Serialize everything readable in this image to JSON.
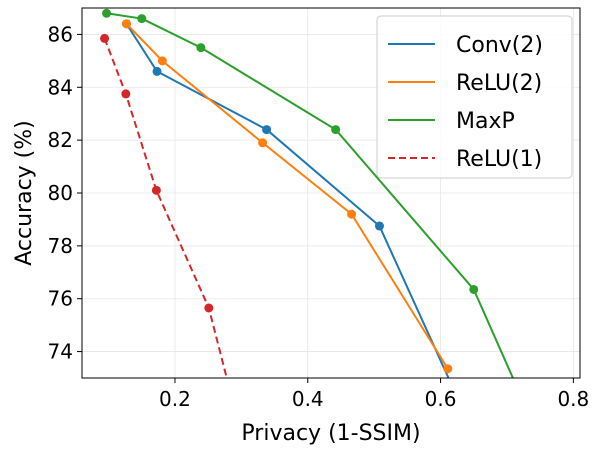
{
  "chart_data": {
    "type": "line",
    "xlabel": "Privacy (1-SSIM)",
    "ylabel": "Accuracy (%)",
    "xlim": [
      0.06,
      0.81
    ],
    "ylim": [
      73.0,
      87.0
    ],
    "xticks": [
      {
        "value": 0.2,
        "label": "0.2"
      },
      {
        "value": 0.4,
        "label": "0.4"
      },
      {
        "value": 0.6,
        "label": "0.6"
      },
      {
        "value": 0.8,
        "label": "0.8"
      }
    ],
    "yticks": [
      {
        "value": 74,
        "label": "74"
      },
      {
        "value": 76,
        "label": "76"
      },
      {
        "value": 78,
        "label": "78"
      },
      {
        "value": 80,
        "label": "80"
      },
      {
        "value": 82,
        "label": "82"
      },
      {
        "value": 84,
        "label": "84"
      },
      {
        "value": 86,
        "label": "86"
      }
    ],
    "grid": true,
    "legend_position": "top-right",
    "series": [
      {
        "name": "Conv(2)",
        "color": "#1f77b4",
        "dash": "solid",
        "points": [
          {
            "x": 0.127,
            "y": 86.4,
            "marker": true
          },
          {
            "x": 0.173,
            "y": 84.6,
            "marker": true
          },
          {
            "x": 0.338,
            "y": 82.4,
            "marker": true
          },
          {
            "x": 0.508,
            "y": 78.75,
            "marker": true
          },
          {
            "x": 0.612,
            "y": 73.0,
            "marker": false
          }
        ]
      },
      {
        "name": "ReLU(2)",
        "color": "#ff7f0e",
        "dash": "solid",
        "points": [
          {
            "x": 0.127,
            "y": 86.4,
            "marker": true
          },
          {
            "x": 0.181,
            "y": 85.0,
            "marker": true
          },
          {
            "x": 0.332,
            "y": 81.9,
            "marker": true
          },
          {
            "x": 0.466,
            "y": 79.2,
            "marker": true
          },
          {
            "x": 0.611,
            "y": 73.35,
            "marker": true
          }
        ]
      },
      {
        "name": "MaxP",
        "color": "#2ca02c",
        "dash": "solid",
        "points": [
          {
            "x": 0.097,
            "y": 86.8,
            "marker": true
          },
          {
            "x": 0.15,
            "y": 86.6,
            "marker": true
          },
          {
            "x": 0.239,
            "y": 85.5,
            "marker": true
          },
          {
            "x": 0.442,
            "y": 82.4,
            "marker": true
          },
          {
            "x": 0.65,
            "y": 76.35,
            "marker": true
          },
          {
            "x": 0.709,
            "y": 73.0,
            "marker": false
          }
        ]
      },
      {
        "name": "ReLU(1)",
        "color": "#d62728",
        "dash": "dashed",
        "points": [
          {
            "x": 0.094,
            "y": 85.85,
            "marker": true
          },
          {
            "x": 0.126,
            "y": 83.75,
            "marker": true
          },
          {
            "x": 0.172,
            "y": 80.1,
            "marker": true
          },
          {
            "x": 0.251,
            "y": 75.65,
            "marker": true
          },
          {
            "x": 0.278,
            "y": 73.0,
            "marker": false
          }
        ]
      }
    ]
  }
}
